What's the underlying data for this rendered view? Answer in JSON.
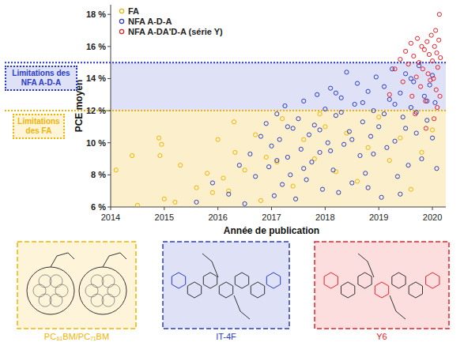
{
  "chart_data": {
    "type": "scatter",
    "x_label": "Année de publication",
    "y_label": "PCE moyen",
    "xlim": [
      2014,
      2020.25
    ],
    "ylim": [
      6,
      18.6
    ],
    "xticks": [
      2014,
      2015,
      2016,
      2017,
      2018,
      2019,
      2020
    ],
    "yticks": [
      {
        "value": 6,
        "label": "6 %"
      },
      {
        "value": 8,
        "label": "8 %"
      },
      {
        "value": 10,
        "label": "10 %"
      },
      {
        "value": 12,
        "label": "12 %"
      },
      {
        "value": 14,
        "label": "14 %"
      },
      {
        "value": 16,
        "label": "16 %"
      },
      {
        "value": 18,
        "label": "18 %"
      }
    ],
    "legend": "upper left",
    "grid": false,
    "marker": "circle",
    "annotations": [
      {
        "text": "Limitations des NFA A-D-A",
        "y": 15,
        "color": "#2a3cc4"
      },
      {
        "text": "Limitations des FA",
        "y": 12,
        "color": "#f0b400"
      }
    ],
    "series": [
      {
        "name": "FA",
        "color": "#f0b400",
        "x": [
          2014.1,
          2014.4,
          2014.5,
          2014.9,
          2014.95,
          2014.92,
          2015.0,
          2015.3,
          2015.6,
          2015.8,
          2015.9,
          2016.0,
          2016.1,
          2016.3,
          2016.32,
          2016.5,
          2016.7,
          2016.8,
          2016.9,
          2017.1,
          2017.2,
          2017.4,
          2017.6,
          2017.8,
          2018.0,
          2018.2,
          2018.4,
          2018.6,
          2018.8,
          2019.0,
          2019.2,
          2019.4,
          2019.6,
          2019.8,
          2020.0,
          2016.2,
          2015.2,
          2017.9
        ],
        "values": [
          8.3,
          9.2,
          6.1,
          10.3,
          9.9,
          9.2,
          6.5,
          8.6,
          7.2,
          8.1,
          6.9,
          10.2,
          7.8,
          11.3,
          9.4,
          8.3,
          10.5,
          6.4,
          9.1,
          8.8,
          11.5,
          7.3,
          10.2,
          9.0,
          11.0,
          8.2,
          10.6,
          7.6,
          9.7,
          11.6,
          8.9,
          10.3,
          7.1,
          9.4,
          10.8,
          7.0,
          6.3,
          11.8
        ]
      },
      {
        "name": "NFA A-D-A",
        "color": "#2a3cc4",
        "x": [
          2015.6,
          2015.9,
          2016.2,
          2016.4,
          2016.6,
          2016.7,
          2016.8,
          2016.9,
          2016.95,
          2017.0,
          2017.05,
          2017.1,
          2017.15,
          2017.2,
          2017.25,
          2017.3,
          2017.35,
          2017.4,
          2017.45,
          2017.5,
          2017.55,
          2017.6,
          2017.65,
          2017.7,
          2017.75,
          2017.8,
          2017.85,
          2017.9,
          2017.95,
          2018.0,
          2018.05,
          2018.1,
          2018.15,
          2018.2,
          2018.25,
          2018.3,
          2018.35,
          2018.4,
          2018.45,
          2018.5,
          2018.55,
          2018.6,
          2018.65,
          2018.7,
          2018.75,
          2018.8,
          2018.85,
          2018.9,
          2018.95,
          2019.0,
          2019.05,
          2019.1,
          2019.15,
          2019.2,
          2019.25,
          2019.3,
          2019.35,
          2019.4,
          2019.45,
          2019.5,
          2019.55,
          2019.6,
          2019.65,
          2019.7,
          2019.75,
          2019.8,
          2019.85,
          2019.9,
          2019.95,
          2020.0,
          2020.05,
          2020.08,
          2017.3,
          2017.6,
          2017.9,
          2018.1,
          2018.3,
          2018.5,
          2018.7,
          2018.9,
          2019.1,
          2019.3,
          2019.5,
          2019.7,
          2019.9,
          2018.2,
          2018.8,
          2019.4,
          2019.6,
          2020.0,
          2017.1,
          2016.5
        ],
        "values": [
          6.3,
          7.5,
          6.8,
          8.6,
          9.3,
          7.9,
          10.4,
          11.2,
          8.5,
          9.8,
          6.7,
          11.8,
          10.2,
          7.4,
          12.3,
          9.1,
          8.0,
          10.9,
          6.5,
          11.5,
          9.6,
          12.6,
          7.7,
          10.5,
          8.8,
          11.1,
          13.0,
          9.4,
          7.1,
          12.1,
          10.0,
          13.4,
          8.3,
          11.7,
          6.9,
          12.8,
          9.9,
          14.4,
          10.7,
          7.5,
          12.4,
          13.7,
          9.2,
          11.3,
          8.1,
          13.2,
          10.4,
          12.0,
          14.1,
          11.0,
          6.6,
          13.5,
          9.7,
          12.7,
          14.6,
          10.1,
          7.9,
          13.1,
          11.6,
          14.3,
          8.6,
          12.2,
          13.8,
          10.6,
          14.8,
          9.0,
          12.9,
          11.4,
          13.6,
          10.3,
          12.5,
          8.4,
          11.0,
          8.4,
          10.8,
          9.5,
          11.9,
          10.2,
          12.5,
          9.3,
          11.8,
          12.4,
          10.9,
          11.9,
          12.6,
          13.1,
          7.2,
          6.8,
          14.0,
          14.2,
          8.9,
          6.2
        ]
      },
      {
        "name": "NFA A-DA'D-A (série Y)",
        "color": "#e8202a",
        "x": [
          2019.2,
          2019.3,
          2019.4,
          2019.45,
          2019.5,
          2019.55,
          2019.6,
          2019.62,
          2019.65,
          2019.7,
          2019.72,
          2019.75,
          2019.78,
          2019.8,
          2019.82,
          2019.85,
          2019.87,
          2019.9,
          2019.92,
          2019.94,
          2019.96,
          2019.98,
          2020.0,
          2020.02,
          2020.04,
          2020.06,
          2020.07,
          2020.08,
          2020.1,
          2020.12,
          2020.13,
          2020.14,
          2020.15,
          2020.03,
          2019.88,
          2020.09,
          2019.68
        ],
        "values": [
          13.0,
          14.6,
          15.2,
          13.8,
          15.7,
          14.9,
          16.2,
          12.9,
          15.4,
          14.1,
          16.5,
          15.0,
          13.5,
          16.0,
          14.6,
          15.8,
          12.6,
          16.3,
          14.3,
          15.5,
          13.9,
          16.7,
          15.1,
          14.0,
          16.0,
          17.0,
          13.3,
          15.6,
          14.7,
          16.4,
          18.0,
          12.9,
          15.3,
          11.5,
          10.9,
          12.2,
          11.8
        ]
      }
    ]
  },
  "structures": [
    {
      "label": "PC₆₁BM/PC₇₁BM",
      "color": "#f0b400"
    },
    {
      "label": "IT-4F",
      "color": "#2a3cc4"
    },
    {
      "label": "Y6",
      "color": "#e8202a"
    }
  ]
}
